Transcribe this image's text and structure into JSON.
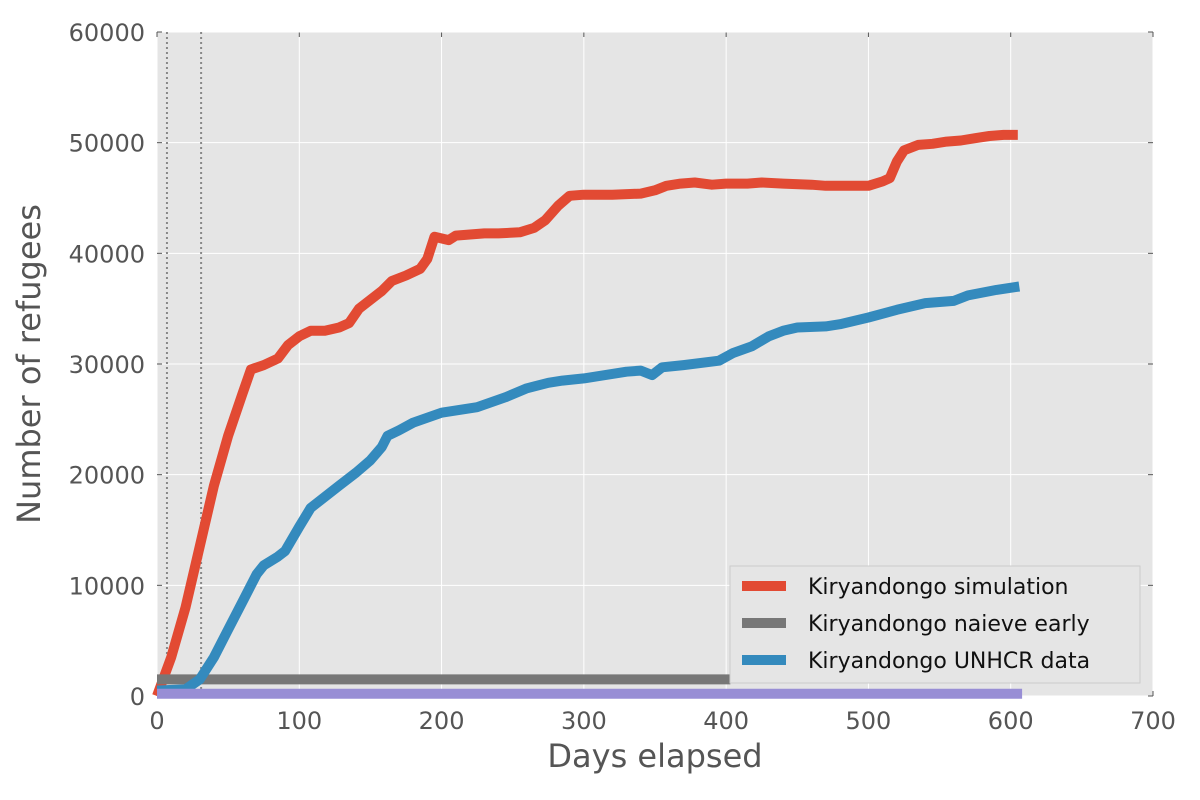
{
  "chart_data": {
    "type": "line",
    "title": "",
    "xlabel": "Days elapsed",
    "ylabel": "Number of refugees",
    "xlim": [
      0,
      700
    ],
    "ylim": [
      0,
      60000
    ],
    "xticks": [
      0,
      100,
      200,
      300,
      400,
      500,
      600,
      700
    ],
    "yticks": [
      0,
      10000,
      20000,
      30000,
      40000,
      50000,
      60000
    ],
    "xtick_labels": [
      "0",
      "100",
      "200",
      "300",
      "400",
      "500",
      "600",
      "700"
    ],
    "ytick_labels": [
      "0",
      "10000",
      "20000",
      "30000",
      "40000",
      "50000",
      "60000"
    ],
    "grid": true,
    "legend_position": "lower-right",
    "vertical_reference_lines": [
      7,
      31
    ],
    "series": [
      {
        "name": "Kiryandongo simulation",
        "color": "#e24a33",
        "in_legend": true,
        "points": [
          [
            0,
            0
          ],
          [
            10,
            3500
          ],
          [
            20,
            8000
          ],
          [
            30,
            13500
          ],
          [
            40,
            19000
          ],
          [
            50,
            23500
          ],
          [
            60,
            27300
          ],
          [
            66,
            29500
          ],
          [
            75,
            29900
          ],
          [
            85,
            30500
          ],
          [
            92,
            31700
          ],
          [
            100,
            32500
          ],
          [
            108,
            33000
          ],
          [
            118,
            33000
          ],
          [
            128,
            33300
          ],
          [
            135,
            33700
          ],
          [
            142,
            35000
          ],
          [
            150,
            35800
          ],
          [
            158,
            36600
          ],
          [
            165,
            37500
          ],
          [
            175,
            38000
          ],
          [
            185,
            38600
          ],
          [
            190,
            39500
          ],
          [
            195,
            41500
          ],
          [
            205,
            41200
          ],
          [
            210,
            41600
          ],
          [
            220,
            41700
          ],
          [
            230,
            41800
          ],
          [
            240,
            41800
          ],
          [
            255,
            41900
          ],
          [
            265,
            42300
          ],
          [
            273,
            43000
          ],
          [
            282,
            44300
          ],
          [
            290,
            45200
          ],
          [
            300,
            45300
          ],
          [
            320,
            45300
          ],
          [
            340,
            45400
          ],
          [
            350,
            45700
          ],
          [
            358,
            46100
          ],
          [
            368,
            46300
          ],
          [
            378,
            46400
          ],
          [
            390,
            46200
          ],
          [
            400,
            46300
          ],
          [
            415,
            46300
          ],
          [
            425,
            46400
          ],
          [
            440,
            46300
          ],
          [
            460,
            46200
          ],
          [
            470,
            46100
          ],
          [
            485,
            46100
          ],
          [
            500,
            46100
          ],
          [
            510,
            46500
          ],
          [
            515,
            46800
          ],
          [
            520,
            48300
          ],
          [
            525,
            49300
          ],
          [
            535,
            49800
          ],
          [
            545,
            49900
          ],
          [
            555,
            50100
          ],
          [
            565,
            50200
          ],
          [
            575,
            50400
          ],
          [
            585,
            50600
          ],
          [
            595,
            50700
          ],
          [
            605,
            50700
          ]
        ]
      },
      {
        "name": "Kiryandongo naieve early",
        "color": "#777777",
        "in_legend": true,
        "points": [
          [
            0,
            1500
          ],
          [
            403,
            1500
          ]
        ]
      },
      {
        "name": "Kiryandongo UNHCR data",
        "color": "#348abd",
        "in_legend": true,
        "points": [
          [
            0,
            500
          ],
          [
            20,
            600
          ],
          [
            30,
            1500
          ],
          [
            40,
            3500
          ],
          [
            50,
            6000
          ],
          [
            60,
            8500
          ],
          [
            70,
            11000
          ],
          [
            75,
            11800
          ],
          [
            85,
            12600
          ],
          [
            90,
            13100
          ],
          [
            100,
            15300
          ],
          [
            108,
            17000
          ],
          [
            118,
            18000
          ],
          [
            128,
            19000
          ],
          [
            140,
            20200
          ],
          [
            150,
            21300
          ],
          [
            158,
            22500
          ],
          [
            162,
            23500
          ],
          [
            170,
            24000
          ],
          [
            180,
            24700
          ],
          [
            200,
            25600
          ],
          [
            225,
            26100
          ],
          [
            245,
            27000
          ],
          [
            260,
            27800
          ],
          [
            275,
            28300
          ],
          [
            285,
            28500
          ],
          [
            300,
            28700
          ],
          [
            330,
            29300
          ],
          [
            340,
            29400
          ],
          [
            348,
            29000
          ],
          [
            355,
            29700
          ],
          [
            370,
            29900
          ],
          [
            395,
            30300
          ],
          [
            405,
            31000
          ],
          [
            418,
            31600
          ],
          [
            430,
            32500
          ],
          [
            440,
            33000
          ],
          [
            450,
            33300
          ],
          [
            470,
            33400
          ],
          [
            480,
            33600
          ],
          [
            500,
            34200
          ],
          [
            520,
            34900
          ],
          [
            540,
            35500
          ],
          [
            560,
            35700
          ],
          [
            570,
            36200
          ],
          [
            590,
            36700
          ],
          [
            606,
            37000
          ]
        ]
      },
      {
        "name": "",
        "color": "#988ed5",
        "in_legend": false,
        "points": [
          [
            0,
            200
          ],
          [
            608,
            200
          ]
        ]
      }
    ]
  }
}
